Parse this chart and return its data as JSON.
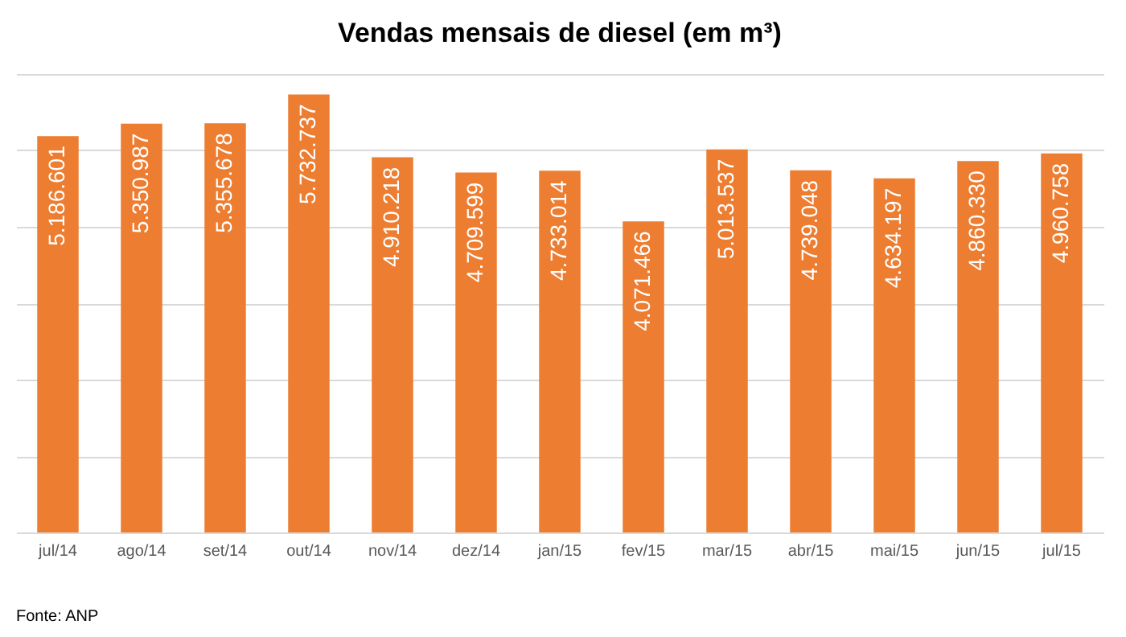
{
  "chart_data": {
    "type": "bar",
    "title": "Vendas mensais de diesel (em m³)",
    "categories": [
      "jul/14",
      "ago/14",
      "set/14",
      "out/14",
      "nov/14",
      "dez/14",
      "jan/15",
      "fev/15",
      "mar/15",
      "abr/15",
      "mai/15",
      "jun/15",
      "jul/15"
    ],
    "values": [
      5186601,
      5350987,
      5355678,
      5732737,
      4910218,
      4709599,
      4733014,
      4071466,
      5013537,
      4739048,
      4634197,
      4860330,
      4960758
    ],
    "value_labels": [
      "5.186.601",
      "5.350.987",
      "5.355.678",
      "5.732.737",
      "4.910.218",
      "4.709.599",
      "4.733.014",
      "4.071.466",
      "5.013.537",
      "4.739.048",
      "4.634.197",
      "4.860.330",
      "4.960.758"
    ],
    "color": "#ed7d31",
    "grid": "y",
    "tick_labels": "x",
    "annotations": [
      "Fonte: ANP"
    ]
  }
}
